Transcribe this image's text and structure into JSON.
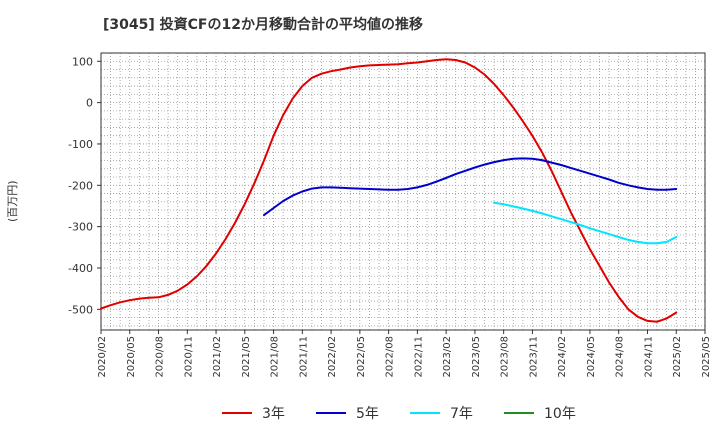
{
  "title": "[3045]  投資CFの12か月移動合計の平均値の推移",
  "y_unit": "(百万円)",
  "chart_data": {
    "type": "line",
    "title": "[3045]  投資CFの12か月移動合計の平均値の推移",
    "ylabel": "(百万円)",
    "xlabel": "",
    "ylim": [
      -550,
      120
    ],
    "yticks": [
      100,
      0,
      -100,
      -200,
      -300,
      -400,
      -500
    ],
    "xlim": [
      "2020-02",
      "2025-05"
    ],
    "xticks": [
      "2020/02",
      "2020/05",
      "2020/08",
      "2020/11",
      "2021/02",
      "2021/05",
      "2021/08",
      "2021/11",
      "2022/02",
      "2022/05",
      "2022/08",
      "2022/11",
      "2023/02",
      "2023/05",
      "2023/08",
      "2023/11",
      "2024/02",
      "2024/05",
      "2024/08",
      "2024/11",
      "2025/02",
      "2025/05"
    ],
    "grid": true,
    "legend_position": "bottom",
    "series": [
      {
        "name": "3年",
        "color": "#e00000",
        "points": [
          [
            "2020-02",
            -498
          ],
          [
            "2020-03",
            -490
          ],
          [
            "2020-04",
            -483
          ],
          [
            "2020-05",
            -478
          ],
          [
            "2020-06",
            -474
          ],
          [
            "2020-07",
            -472
          ],
          [
            "2020-08",
            -471
          ],
          [
            "2020-09",
            -465
          ],
          [
            "2020-10",
            -455
          ],
          [
            "2020-11",
            -440
          ],
          [
            "2020-12",
            -420
          ],
          [
            "2021-01",
            -395
          ],
          [
            "2021-02",
            -365
          ],
          [
            "2021-03",
            -330
          ],
          [
            "2021-04",
            -290
          ],
          [
            "2021-05",
            -245
          ],
          [
            "2021-06",
            -195
          ],
          [
            "2021-07",
            -140
          ],
          [
            "2021-08",
            -80
          ],
          [
            "2021-09",
            -30
          ],
          [
            "2021-10",
            10
          ],
          [
            "2021-11",
            40
          ],
          [
            "2021-12",
            60
          ],
          [
            "2022-01",
            70
          ],
          [
            "2022-02",
            76
          ],
          [
            "2022-03",
            80
          ],
          [
            "2022-04",
            85
          ],
          [
            "2022-05",
            88
          ],
          [
            "2022-06",
            90
          ],
          [
            "2022-07",
            91
          ],
          [
            "2022-08",
            92
          ],
          [
            "2022-09",
            93
          ],
          [
            "2022-10",
            95
          ],
          [
            "2022-11",
            97
          ],
          [
            "2022-12",
            100
          ],
          [
            "2023-01",
            103
          ],
          [
            "2023-02",
            105
          ],
          [
            "2023-03",
            103
          ],
          [
            "2023-04",
            97
          ],
          [
            "2023-05",
            85
          ],
          [
            "2023-06",
            68
          ],
          [
            "2023-07",
            45
          ],
          [
            "2023-08",
            18
          ],
          [
            "2023-09",
            -12
          ],
          [
            "2023-10",
            -45
          ],
          [
            "2023-11",
            -80
          ],
          [
            "2023-12",
            -120
          ],
          [
            "2024-01",
            -165
          ],
          [
            "2024-02",
            -215
          ],
          [
            "2024-03",
            -265
          ],
          [
            "2024-04",
            -310
          ],
          [
            "2024-05",
            -355
          ],
          [
            "2024-06",
            -395
          ],
          [
            "2024-07",
            -435
          ],
          [
            "2024-08",
            -470
          ],
          [
            "2024-09",
            -500
          ],
          [
            "2024-10",
            -518
          ],
          [
            "2024-11",
            -528
          ],
          [
            "2024-12",
            -530
          ],
          [
            "2025-01",
            -522
          ],
          [
            "2025-02",
            -508
          ]
        ]
      },
      {
        "name": "5年",
        "color": "#0000cc",
        "points": [
          [
            "2021-07",
            -272
          ],
          [
            "2021-08",
            -255
          ],
          [
            "2021-09",
            -238
          ],
          [
            "2021-10",
            -225
          ],
          [
            "2021-11",
            -215
          ],
          [
            "2021-12",
            -208
          ],
          [
            "2022-01",
            -205
          ],
          [
            "2022-02",
            -205
          ],
          [
            "2022-03",
            -206
          ],
          [
            "2022-04",
            -207
          ],
          [
            "2022-05",
            -208
          ],
          [
            "2022-06",
            -209
          ],
          [
            "2022-07",
            -210
          ],
          [
            "2022-08",
            -211
          ],
          [
            "2022-09",
            -211
          ],
          [
            "2022-10",
            -209
          ],
          [
            "2022-11",
            -205
          ],
          [
            "2022-12",
            -199
          ],
          [
            "2023-01",
            -191
          ],
          [
            "2023-02",
            -182
          ],
          [
            "2023-03",
            -173
          ],
          [
            "2023-04",
            -165
          ],
          [
            "2023-05",
            -157
          ],
          [
            "2023-06",
            -150
          ],
          [
            "2023-07",
            -144
          ],
          [
            "2023-08",
            -139
          ],
          [
            "2023-09",
            -136
          ],
          [
            "2023-10",
            -135
          ],
          [
            "2023-11",
            -136
          ],
          [
            "2023-12",
            -139
          ],
          [
            "2024-01",
            -145
          ],
          [
            "2024-02",
            -151
          ],
          [
            "2024-03",
            -158
          ],
          [
            "2024-04",
            -165
          ],
          [
            "2024-05",
            -172
          ],
          [
            "2024-06",
            -179
          ],
          [
            "2024-07",
            -186
          ],
          [
            "2024-08",
            -194
          ],
          [
            "2024-09",
            -200
          ],
          [
            "2024-10",
            -205
          ],
          [
            "2024-11",
            -209
          ],
          [
            "2024-12",
            -211
          ],
          [
            "2025-01",
            -211
          ],
          [
            "2025-02",
            -209
          ]
        ]
      },
      {
        "name": "7年",
        "color": "#00e5ff",
        "points": [
          [
            "2023-07",
            -242
          ],
          [
            "2023-08",
            -246
          ],
          [
            "2023-09",
            -251
          ],
          [
            "2023-10",
            -256
          ],
          [
            "2023-11",
            -262
          ],
          [
            "2023-12",
            -268
          ],
          [
            "2024-01",
            -275
          ],
          [
            "2024-02",
            -282
          ],
          [
            "2024-03",
            -289
          ],
          [
            "2024-04",
            -296
          ],
          [
            "2024-05",
            -304
          ],
          [
            "2024-06",
            -311
          ],
          [
            "2024-07",
            -318
          ],
          [
            "2024-08",
            -325
          ],
          [
            "2024-09",
            -332
          ],
          [
            "2024-10",
            -337
          ],
          [
            "2024-11",
            -340
          ],
          [
            "2024-12",
            -340
          ],
          [
            "2025-01",
            -337
          ],
          [
            "2025-02",
            -325
          ]
        ]
      },
      {
        "name": "10年",
        "color": "#228b22",
        "points": []
      }
    ]
  }
}
